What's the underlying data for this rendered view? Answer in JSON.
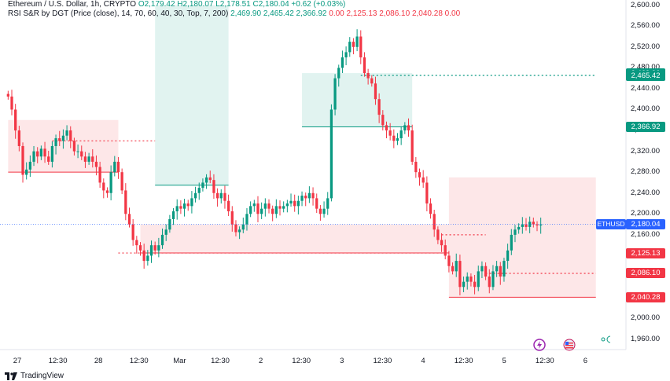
{
  "header": {
    "symbol_line": "Ethereum / U.S. Dollar, 1h, CRYPTO",
    "ohlc": "O2,179.42 H2,180.07 L2,178.51 C2,180.04 +0.62 (+0.03%)",
    "indicator_name": "RSI S&R by DGT",
    "indicator_params": "(Price (close), 14, 70, 60, 40, 30, Top, 7, 200)",
    "indicator_values": [
      "2,469.90",
      "2,465.42",
      "2,366.92",
      "0.00",
      "2,125.13",
      "2,086.10",
      "2,040.28",
      "0.00"
    ]
  },
  "price_axis": {
    "ticks": [
      2600,
      2560,
      2520,
      2480,
      2440,
      2400,
      2360,
      2320,
      2280,
      2240,
      2200,
      2160,
      2000,
      1960
    ],
    "tick_labels": [
      "2,600.00",
      "2,560.00",
      "2,520.00",
      "2,480.00",
      "2,440.00",
      "2,400.00",
      "2,360.00",
      "2,320.00",
      "2,280.00",
      "2,240.00",
      "2,200.00",
      "2,160.00",
      "2,000.00",
      "1,960.00"
    ]
  },
  "badges": [
    {
      "label": "2,469.90",
      "price": 2469.9,
      "color": "#089981"
    },
    {
      "label": "2,465.42",
      "price": 2465.42,
      "color": "#089981"
    },
    {
      "label": "2,366.92",
      "price": 2366.92,
      "color": "#089981"
    },
    {
      "label": "2,180.04",
      "price": 2180.04,
      "color": "#2962ff"
    },
    {
      "label": "2,125.13",
      "price": 2125.13,
      "color": "#f23645"
    },
    {
      "label": "2,086.10",
      "price": 2086.1,
      "color": "#f23645"
    },
    {
      "label": "2,040.28",
      "price": 2040.28,
      "color": "#f23645"
    }
  ],
  "symbol_badge": "ETHUSD",
  "time_axis": {
    "labels": [
      {
        "t": "27",
        "bar": 0
      },
      {
        "t": "12:30",
        "bar": 12
      },
      {
        "t": "28",
        "bar": 24
      },
      {
        "t": "12:30",
        "bar": 36
      },
      {
        "t": "Mar",
        "bar": 48
      },
      {
        "t": "12:30",
        "bar": 60
      },
      {
        "t": "2",
        "bar": 72
      },
      {
        "t": "12:30",
        "bar": 84
      },
      {
        "t": "3",
        "bar": 96
      },
      {
        "t": "12:30",
        "bar": 108
      },
      {
        "t": "4",
        "bar": 120
      },
      {
        "t": "12:30",
        "bar": 132
      },
      {
        "t": "5",
        "bar": 144
      },
      {
        "t": "12:30",
        "bar": 156
      },
      {
        "t": "6",
        "bar": 168
      }
    ]
  },
  "brand": "TradingView",
  "chart_data": {
    "type": "candlestick",
    "title": "Ethereum / U.S. Dollar, 1h, CRYPTO",
    "ylim": [
      1940,
      2610
    ],
    "y_axis_side": "right",
    "grid": false,
    "last_price": 2180.04,
    "closes": [
      2425,
      2400,
      2360,
      2330,
      2275,
      2285,
      2300,
      2320,
      2310,
      2325,
      2310,
      2300,
      2330,
      2345,
      2340,
      2350,
      2360,
      2340,
      2320,
      2320,
      2310,
      2300,
      2310,
      2300,
      2290,
      2260,
      2245,
      2240,
      2280,
      2300,
      2280,
      2245,
      2200,
      2180,
      2150,
      2140,
      2130,
      2110,
      2120,
      2140,
      2130,
      2140,
      2160,
      2170,
      2190,
      2205,
      2215,
      2210,
      2220,
      2215,
      2230,
      2240,
      2250,
      2260,
      2270,
      2265,
      2240,
      2230,
      2240,
      2225,
      2205,
      2180,
      2165,
      2170,
      2180,
      2200,
      2215,
      2220,
      2200,
      2210,
      2220,
      2210,
      2200,
      2215,
      2210,
      2215,
      2220,
      2225,
      2215,
      2225,
      2235,
      2230,
      2240,
      2230,
      2210,
      2200,
      2210,
      2230,
      2400,
      2460,
      2480,
      2500,
      2510,
      2530,
      2520,
      2540,
      2500,
      2470,
      2460,
      2450,
      2420,
      2390,
      2370,
      2360,
      2350,
      2340,
      2345,
      2360,
      2370,
      2360,
      2300,
      2280,
      2270,
      2260,
      2220,
      2200,
      2170,
      2150,
      2140,
      2120,
      2100,
      2090,
      2110,
      2060,
      2070,
      2080,
      2070,
      2060,
      2090,
      2100,
      2080,
      2060,
      2090,
      2100,
      2080,
      2110,
      2130,
      2160,
      2170,
      2175,
      2180,
      2175,
      2185,
      2180,
      2178,
      2180
    ],
    "zones": [
      {
        "kind": "overbought",
        "from_bar": 40,
        "to_bar": 60,
        "low": 2255,
        "high": 2600
      },
      {
        "kind": "overbought",
        "from_bar": 80,
        "to_bar": 110,
        "low": 2366.92,
        "high": 2469.9
      },
      {
        "kind": "oversold",
        "from_bar": 0,
        "to_bar": 30,
        "low": 2280,
        "high": 2380
      },
      {
        "kind": "oversold",
        "from_bar": 36,
        "to_bar": 120,
        "low": 2125.13,
        "high": 2180
      },
      {
        "kind": "oversold",
        "from_bar": 120,
        "to_bar": 160,
        "low": 2040.28,
        "high": 2270
      }
    ]
  }
}
